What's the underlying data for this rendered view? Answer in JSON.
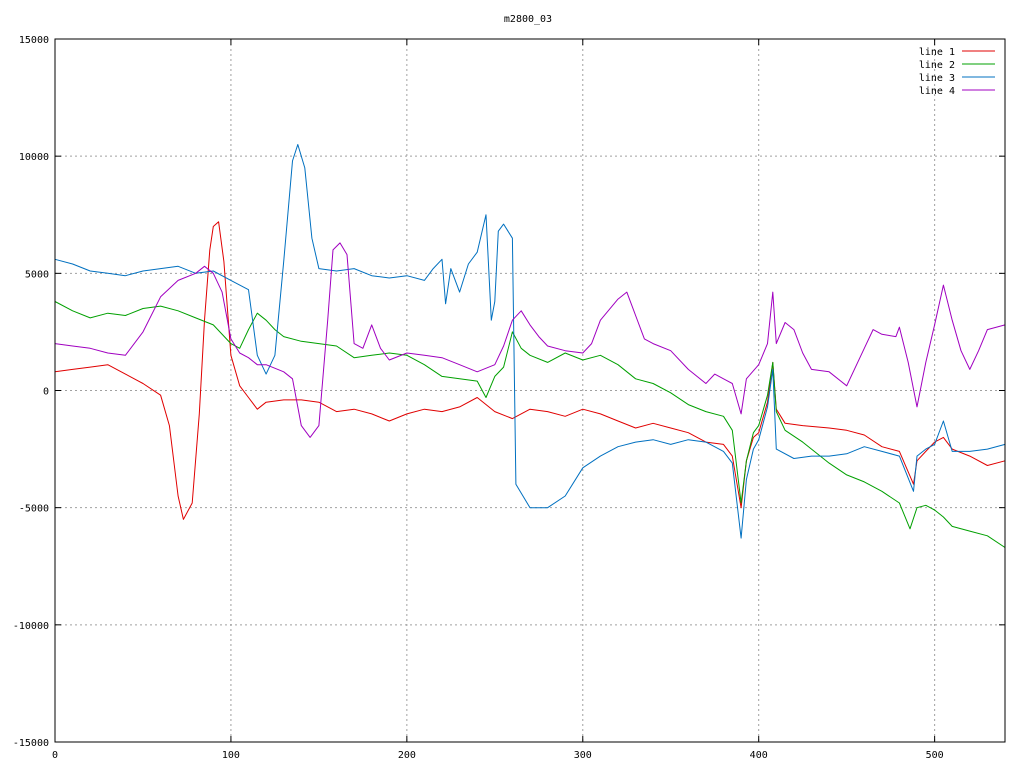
{
  "chart_data": {
    "type": "line",
    "title": "m2800_03",
    "xlabel": "",
    "ylabel": "",
    "xlim": [
      0,
      540
    ],
    "ylim": [
      -15000,
      15000
    ],
    "xticks": [
      0,
      100,
      200,
      300,
      400,
      500
    ],
    "yticks": [
      -15000,
      -10000,
      -5000,
      0,
      5000,
      10000,
      15000
    ],
    "grid": true,
    "legend_position": "top-right",
    "series": [
      {
        "name": "line 1",
        "color": "#e00000",
        "points": [
          [
            0,
            800
          ],
          [
            10,
            900
          ],
          [
            20,
            1000
          ],
          [
            30,
            1100
          ],
          [
            40,
            700
          ],
          [
            50,
            300
          ],
          [
            60,
            -200
          ],
          [
            65,
            -1500
          ],
          [
            70,
            -4500
          ],
          [
            73,
            -5500
          ],
          [
            78,
            -4800
          ],
          [
            82,
            -1000
          ],
          [
            85,
            3000
          ],
          [
            88,
            6000
          ],
          [
            90,
            7000
          ],
          [
            93,
            7200
          ],
          [
            96,
            5500
          ],
          [
            100,
            1500
          ],
          [
            105,
            200
          ],
          [
            110,
            -300
          ],
          [
            115,
            -800
          ],
          [
            120,
            -500
          ],
          [
            130,
            -400
          ],
          [
            140,
            -400
          ],
          [
            150,
            -500
          ],
          [
            160,
            -900
          ],
          [
            170,
            -800
          ],
          [
            180,
            -1000
          ],
          [
            190,
            -1300
          ],
          [
            200,
            -1000
          ],
          [
            210,
            -800
          ],
          [
            220,
            -900
          ],
          [
            230,
            -700
          ],
          [
            240,
            -300
          ],
          [
            250,
            -900
          ],
          [
            260,
            -1200
          ],
          [
            270,
            -800
          ],
          [
            280,
            -900
          ],
          [
            290,
            -1100
          ],
          [
            300,
            -800
          ],
          [
            310,
            -1000
          ],
          [
            320,
            -1300
          ],
          [
            330,
            -1600
          ],
          [
            340,
            -1400
          ],
          [
            350,
            -1600
          ],
          [
            360,
            -1800
          ],
          [
            370,
            -2200
          ],
          [
            380,
            -2300
          ],
          [
            385,
            -2800
          ],
          [
            390,
            -5000
          ],
          [
            393,
            -3000
          ],
          [
            397,
            -2000
          ],
          [
            400,
            -1800
          ],
          [
            405,
            -500
          ],
          [
            408,
            1200
          ],
          [
            410,
            -800
          ],
          [
            415,
            -1400
          ],
          [
            425,
            -1500
          ],
          [
            440,
            -1600
          ],
          [
            450,
            -1700
          ],
          [
            460,
            -1900
          ],
          [
            470,
            -2400
          ],
          [
            480,
            -2600
          ],
          [
            488,
            -4000
          ],
          [
            490,
            -3000
          ],
          [
            495,
            -2600
          ],
          [
            500,
            -2200
          ],
          [
            505,
            -2000
          ],
          [
            510,
            -2500
          ],
          [
            520,
            -2800
          ],
          [
            530,
            -3200
          ],
          [
            540,
            -3000
          ]
        ]
      },
      {
        "name": "line 2",
        "color": "#00a000",
        "points": [
          [
            0,
            3800
          ],
          [
            10,
            3400
          ],
          [
            20,
            3100
          ],
          [
            30,
            3300
          ],
          [
            40,
            3200
          ],
          [
            50,
            3500
          ],
          [
            60,
            3600
          ],
          [
            70,
            3400
          ],
          [
            80,
            3100
          ],
          [
            90,
            2800
          ],
          [
            100,
            2000
          ],
          [
            105,
            1800
          ],
          [
            110,
            2600
          ],
          [
            115,
            3300
          ],
          [
            120,
            3000
          ],
          [
            125,
            2600
          ],
          [
            130,
            2300
          ],
          [
            140,
            2100
          ],
          [
            150,
            2000
          ],
          [
            160,
            1900
          ],
          [
            170,
            1400
          ],
          [
            180,
            1500
          ],
          [
            190,
            1600
          ],
          [
            200,
            1500
          ],
          [
            210,
            1100
          ],
          [
            220,
            600
          ],
          [
            230,
            500
          ],
          [
            240,
            400
          ],
          [
            245,
            -300
          ],
          [
            250,
            600
          ],
          [
            255,
            1000
          ],
          [
            260,
            2500
          ],
          [
            265,
            1800
          ],
          [
            270,
            1500
          ],
          [
            280,
            1200
          ],
          [
            290,
            1600
          ],
          [
            300,
            1300
          ],
          [
            310,
            1500
          ],
          [
            320,
            1100
          ],
          [
            330,
            500
          ],
          [
            340,
            300
          ],
          [
            350,
            -100
          ],
          [
            360,
            -600
          ],
          [
            370,
            -900
          ],
          [
            380,
            -1100
          ],
          [
            385,
            -1700
          ],
          [
            390,
            -4800
          ],
          [
            393,
            -3000
          ],
          [
            397,
            -1800
          ],
          [
            400,
            -1500
          ],
          [
            405,
            -200
          ],
          [
            408,
            1200
          ],
          [
            410,
            -900
          ],
          [
            415,
            -1700
          ],
          [
            425,
            -2200
          ],
          [
            440,
            -3100
          ],
          [
            450,
            -3600
          ],
          [
            460,
            -3900
          ],
          [
            470,
            -4300
          ],
          [
            480,
            -4800
          ],
          [
            486,
            -5900
          ],
          [
            490,
            -5000
          ],
          [
            495,
            -4900
          ],
          [
            500,
            -5100
          ],
          [
            505,
            -5400
          ],
          [
            510,
            -5800
          ],
          [
            520,
            -6000
          ],
          [
            530,
            -6200
          ],
          [
            540,
            -6700
          ]
        ]
      },
      {
        "name": "line 3",
        "color": "#0070c0",
        "points": [
          [
            0,
            5600
          ],
          [
            10,
            5400
          ],
          [
            20,
            5100
          ],
          [
            30,
            5000
          ],
          [
            40,
            4900
          ],
          [
            50,
            5100
          ],
          [
            60,
            5200
          ],
          [
            70,
            5300
          ],
          [
            80,
            5000
          ],
          [
            90,
            5100
          ],
          [
            100,
            4700
          ],
          [
            110,
            4300
          ],
          [
            115,
            1500
          ],
          [
            120,
            700
          ],
          [
            125,
            1500
          ],
          [
            130,
            5500
          ],
          [
            135,
            9800
          ],
          [
            138,
            10500
          ],
          [
            142,
            9500
          ],
          [
            146,
            6500
          ],
          [
            150,
            5200
          ],
          [
            160,
            5100
          ],
          [
            170,
            5200
          ],
          [
            180,
            4900
          ],
          [
            190,
            4800
          ],
          [
            200,
            4900
          ],
          [
            210,
            4700
          ],
          [
            215,
            5200
          ],
          [
            220,
            5600
          ],
          [
            222,
            3700
          ],
          [
            225,
            5200
          ],
          [
            230,
            4200
          ],
          [
            235,
            5400
          ],
          [
            240,
            5900
          ],
          [
            245,
            7500
          ],
          [
            248,
            3000
          ],
          [
            250,
            3800
          ],
          [
            252,
            6800
          ],
          [
            255,
            7100
          ],
          [
            260,
            6500
          ],
          [
            262,
            -4000
          ],
          [
            270,
            -5000
          ],
          [
            280,
            -5000
          ],
          [
            290,
            -4500
          ],
          [
            300,
            -3300
          ],
          [
            310,
            -2800
          ],
          [
            320,
            -2400
          ],
          [
            330,
            -2200
          ],
          [
            340,
            -2100
          ],
          [
            350,
            -2300
          ],
          [
            360,
            -2100
          ],
          [
            370,
            -2200
          ],
          [
            380,
            -2600
          ],
          [
            385,
            -3100
          ],
          [
            390,
            -6300
          ],
          [
            393,
            -3800
          ],
          [
            397,
            -2500
          ],
          [
            400,
            -2100
          ],
          [
            405,
            -700
          ],
          [
            408,
            900
          ],
          [
            410,
            -2500
          ],
          [
            420,
            -2900
          ],
          [
            430,
            -2800
          ],
          [
            440,
            -2800
          ],
          [
            450,
            -2700
          ],
          [
            460,
            -2400
          ],
          [
            470,
            -2600
          ],
          [
            480,
            -2800
          ],
          [
            488,
            -4300
          ],
          [
            490,
            -2800
          ],
          [
            495,
            -2500
          ],
          [
            500,
            -2300
          ],
          [
            505,
            -1300
          ],
          [
            510,
            -2600
          ],
          [
            520,
            -2600
          ],
          [
            530,
            -2500
          ],
          [
            540,
            -2300
          ]
        ]
      },
      {
        "name": "line 4",
        "color": "#a000c0",
        "points": [
          [
            0,
            2000
          ],
          [
            10,
            1900
          ],
          [
            20,
            1800
          ],
          [
            30,
            1600
          ],
          [
            40,
            1500
          ],
          [
            50,
            2500
          ],
          [
            60,
            4000
          ],
          [
            70,
            4700
          ],
          [
            80,
            5000
          ],
          [
            85,
            5300
          ],
          [
            90,
            5000
          ],
          [
            95,
            4200
          ],
          [
            100,
            2200
          ],
          [
            105,
            1600
          ],
          [
            110,
            1400
          ],
          [
            115,
            1100
          ],
          [
            120,
            1100
          ],
          [
            130,
            800
          ],
          [
            135,
            500
          ],
          [
            140,
            -1500
          ],
          [
            145,
            -2000
          ],
          [
            150,
            -1500
          ],
          [
            155,
            3000
          ],
          [
            158,
            6000
          ],
          [
            162,
            6300
          ],
          [
            166,
            5800
          ],
          [
            170,
            2000
          ],
          [
            175,
            1800
          ],
          [
            180,
            2800
          ],
          [
            185,
            1800
          ],
          [
            190,
            1300
          ],
          [
            200,
            1600
          ],
          [
            210,
            1500
          ],
          [
            220,
            1400
          ],
          [
            230,
            1100
          ],
          [
            240,
            800
          ],
          [
            250,
            1100
          ],
          [
            255,
            1900
          ],
          [
            260,
            3000
          ],
          [
            265,
            3400
          ],
          [
            270,
            2800
          ],
          [
            275,
            2300
          ],
          [
            280,
            1900
          ],
          [
            290,
            1700
          ],
          [
            300,
            1600
          ],
          [
            305,
            2000
          ],
          [
            310,
            3000
          ],
          [
            320,
            3900
          ],
          [
            325,
            4200
          ],
          [
            330,
            3200
          ],
          [
            335,
            2200
          ],
          [
            340,
            2000
          ],
          [
            350,
            1700
          ],
          [
            360,
            900
          ],
          [
            370,
            300
          ],
          [
            375,
            700
          ],
          [
            380,
            500
          ],
          [
            385,
            300
          ],
          [
            390,
            -1000
          ],
          [
            393,
            500
          ],
          [
            400,
            1100
          ],
          [
            405,
            2000
          ],
          [
            408,
            4200
          ],
          [
            410,
            2000
          ],
          [
            415,
            2900
          ],
          [
            420,
            2600
          ],
          [
            425,
            1600
          ],
          [
            430,
            900
          ],
          [
            440,
            800
          ],
          [
            450,
            200
          ],
          [
            460,
            1800
          ],
          [
            465,
            2600
          ],
          [
            470,
            2400
          ],
          [
            478,
            2300
          ],
          [
            480,
            2700
          ],
          [
            485,
            1200
          ],
          [
            490,
            -700
          ],
          [
            495,
            1200
          ],
          [
            500,
            2800
          ],
          [
            505,
            4500
          ],
          [
            510,
            3000
          ],
          [
            515,
            1700
          ],
          [
            520,
            900
          ],
          [
            525,
            1700
          ],
          [
            530,
            2600
          ],
          [
            540,
            2800
          ]
        ]
      }
    ]
  }
}
